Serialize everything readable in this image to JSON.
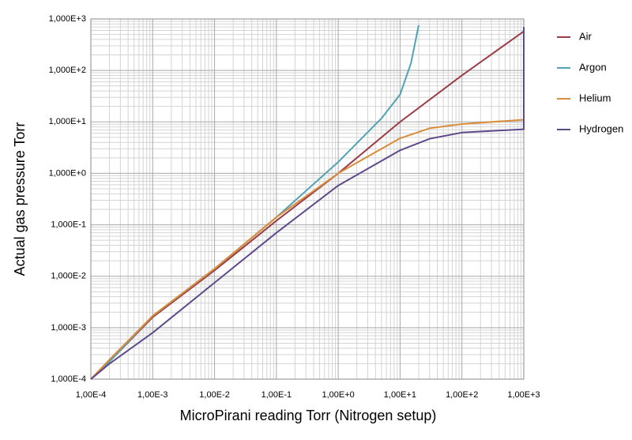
{
  "chart_data": {
    "type": "line",
    "x_label": "MicroPirani reading Torr (Nitrogen setup)",
    "y_label": "Actual gas pressure Torr",
    "log_x": true,
    "log_y": true,
    "grid": true,
    "legend": "right",
    "xlim": [
      0.0001,
      1000
    ],
    "ylim": [
      0.0001,
      1000
    ],
    "xticks": [
      {
        "value": 0.0001,
        "label": "1,00E-4"
      },
      {
        "value": 0.001,
        "label": "1,00E-3"
      },
      {
        "value": 0.01,
        "label": "1,00E-2"
      },
      {
        "value": 0.1,
        "label": "1,00E-1"
      },
      {
        "value": 1,
        "label": "1,00E+0"
      },
      {
        "value": 10,
        "label": "1,00E+1"
      },
      {
        "value": 100,
        "label": "1,00E+2"
      },
      {
        "value": 1000,
        "label": "1,00E+3"
      }
    ],
    "yticks": [
      {
        "value": 0.0001,
        "label": "1,000E-4"
      },
      {
        "value": 0.001,
        "label": "1,000E-3"
      },
      {
        "value": 0.01,
        "label": "1,000E-2"
      },
      {
        "value": 0.1,
        "label": "1,000E-1"
      },
      {
        "value": 1,
        "label": "1,000E+0"
      },
      {
        "value": 10,
        "label": "1,000E+1"
      },
      {
        "value": 100,
        "label": "1,000E+2"
      },
      {
        "value": 1000,
        "label": "1,000E+3"
      }
    ],
    "series": [
      {
        "name": "Air",
        "color": "#9b3d47",
        "x": [
          0.0001,
          0.0002,
          0.001,
          0.01,
          0.1,
          1,
          10,
          100,
          1000
        ],
        "values": [
          0.0001,
          0.00022,
          0.0016,
          0.013,
          0.12,
          1.0,
          10,
          80,
          575
        ]
      },
      {
        "name": "Argon",
        "color": "#4fa3b4",
        "x": [
          0.0001,
          0.0002,
          0.001,
          0.01,
          0.1,
          1,
          5,
          10,
          15,
          20
        ],
        "values": [
          0.0001,
          0.00022,
          0.0017,
          0.014,
          0.14,
          1.66,
          11.7,
          34,
          138,
          760
        ]
      },
      {
        "name": "Helium",
        "color": "#d98c3a",
        "x": [
          0.0001,
          0.0002,
          0.001,
          0.01,
          0.1,
          1,
          10,
          30,
          100,
          1000
        ],
        "values": [
          0.0001,
          0.00024,
          0.0017,
          0.014,
          0.14,
          1.0,
          4.8,
          7.5,
          9.1,
          11
        ]
      },
      {
        "name": "Hydrogen",
        "color": "#5e4a8a",
        "x": [
          0.0001,
          0.0002,
          0.001,
          0.01,
          0.1,
          1,
          10,
          30,
          100,
          1000,
          1000
        ],
        "values": [
          0.0001,
          0.0002,
          0.0008,
          0.0075,
          0.07,
          0.58,
          2.8,
          4.7,
          6.2,
          7.2,
          700
        ]
      }
    ]
  }
}
